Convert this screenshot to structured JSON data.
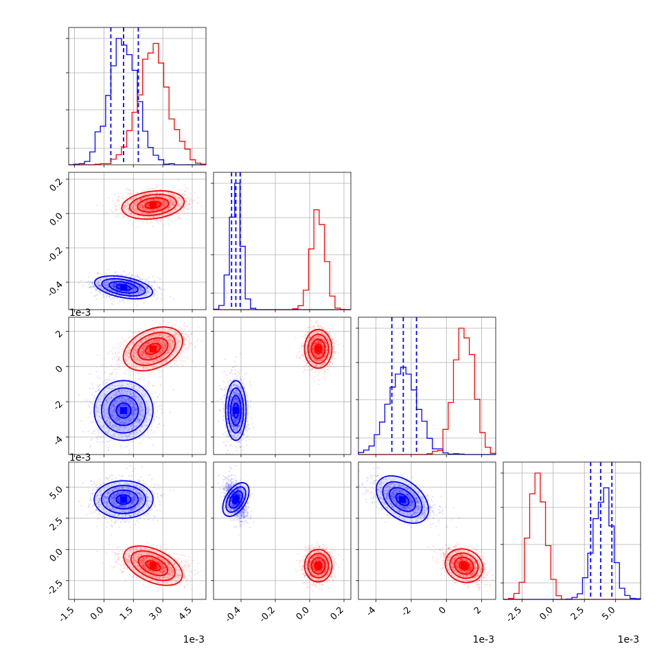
{
  "chart_data": {
    "type": "corner",
    "colors": {
      "a": "#0000ff",
      "b": "#ff0000",
      "grid": "#b0b0b0"
    },
    "grid": true,
    "params": [
      {
        "range": [
          -1.8,
          5.2
        ],
        "ticks": [
          -1.5,
          0.0,
          1.5,
          3.0,
          4.5
        ],
        "tick_labels": [
          "-1.5",
          "0.0",
          "1.5",
          "3.0",
          "4.5"
        ],
        "offset": "1e-3"
      },
      {
        "range": [
          -0.56,
          0.24
        ],
        "ticks": [
          -0.4,
          -0.2,
          0.0,
          0.2
        ],
        "tick_labels": [
          "-0.4",
          "-0.2",
          "0.0",
          "0.2"
        ],
        "offset": ""
      },
      {
        "range": [
          -5.0,
          2.8
        ],
        "ticks": [
          -4,
          -2,
          0,
          2
        ],
        "tick_labels": [
          "-4",
          "-2",
          "0",
          "2"
        ],
        "offset": "1e-3"
      },
      {
        "range": [
          -4.0,
          7.0
        ],
        "ticks": [
          -2.5,
          0.0,
          2.5,
          5.0
        ],
        "tick_labels": [
          "-2.5",
          "0.0",
          "2.5",
          "5.0"
        ],
        "offset": "1e-3"
      }
    ],
    "series": [
      {
        "color": "a",
        "mean": [
          1.0,
          -0.43,
          -2.5,
          4.0
        ],
        "sd": [
          0.75,
          0.03,
          0.85,
          0.75
        ],
        "quantiles": [
          [
            0.35,
            1.0,
            1.75
          ],
          [
            -0.455,
            -0.43,
            -0.405
          ],
          [
            -3.1,
            -2.45,
            -1.7
          ],
          [
            3.0,
            3.8,
            4.7
          ]
        ]
      },
      {
        "color": "b",
        "mean": [
          2.5,
          0.05,
          1.0,
          -1.3
        ],
        "sd": [
          0.8,
          0.04,
          0.55,
          0.65
        ],
        "quantiles": null
      }
    ]
  }
}
